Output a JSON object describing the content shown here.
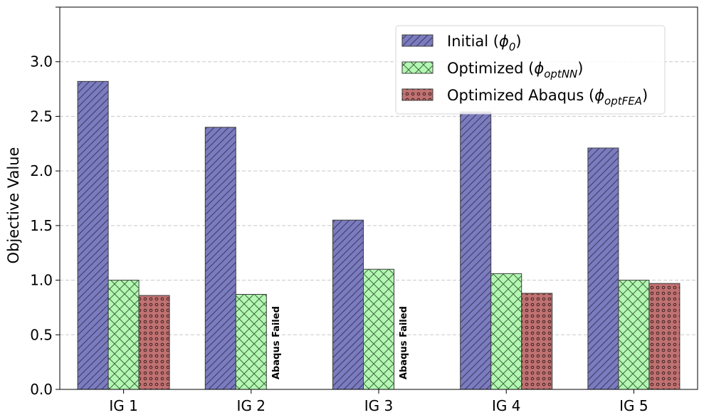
{
  "chart_data": {
    "type": "bar",
    "categories": [
      "IG 1",
      "IG 2",
      "IG 3",
      "IG 4",
      "IG 5"
    ],
    "series": [
      {
        "name": "Initial (ϕ0)",
        "name_base": "Initial (",
        "name_symbol": "ϕ",
        "name_sub": "0",
        "name_end": ")",
        "values": [
          2.82,
          2.4,
          1.55,
          2.54,
          2.21
        ],
        "color": "#7b7bbf",
        "pattern": "diagonal"
      },
      {
        "name": "Optimized (ϕoptNN)",
        "name_base": "Optimized (",
        "name_symbol": "ϕ",
        "name_sub": "optNN",
        "name_end": ")",
        "values": [
          1.0,
          0.87,
          1.1,
          1.06,
          1.0
        ],
        "color": "#b3f7b3",
        "pattern": "crosshatch"
      },
      {
        "name": "Optimized Abaqus (ϕoptFEA)",
        "name_base": "Optimized Abaqus (",
        "name_symbol": "ϕ",
        "name_sub": "optFEA",
        "name_end": ")",
        "values": [
          0.86,
          null,
          null,
          0.88,
          0.97
        ],
        "color": "#c07171",
        "pattern": "dots"
      }
    ],
    "annotations": [
      {
        "text": "Abaqus Failed",
        "category_index": 1,
        "series_index": 2
      },
      {
        "text": "Abaqus Failed",
        "category_index": 2,
        "series_index": 2
      }
    ],
    "ylabel": "Objective Value",
    "xlabel": "",
    "ylim": [
      0,
      3.5
    ],
    "yticks": [
      0,
      0.5,
      1.0,
      1.5,
      2.0,
      2.5,
      3.0,
      3.5
    ],
    "ytick_labels": [
      "0.0",
      "0.5",
      "1.0",
      "1.5",
      "2.0",
      "2.5",
      "3.0",
      ""
    ],
    "grid": true,
    "legend_position": "top-right"
  }
}
